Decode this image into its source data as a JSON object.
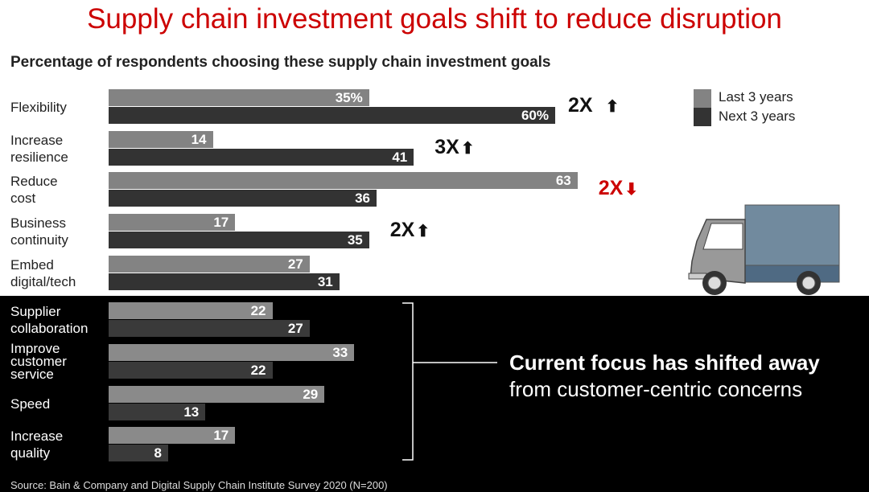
{
  "chart_data": {
    "type": "bar",
    "orientation": "horizontal",
    "title": "Supply chain investment goals shift to reduce disruption",
    "subtitle": "Percentage of respondents choosing these supply chain investment goals",
    "categories": [
      "Flexibility",
      "Increase\nresilience",
      "Reduce\ncost",
      "Business\ncontinuity",
      "Embed\ndigital/tech",
      "Supplier\ncollaboration",
      "Improve\ncustomer\nservice",
      "Speed",
      "Increase\nquality"
    ],
    "series": [
      {
        "name": "Last 3 years",
        "color": "#838383",
        "values": [
          35,
          14,
          63,
          17,
          27,
          22,
          33,
          29,
          17
        ]
      },
      {
        "name": "Next 3 years",
        "color": "#333333",
        "values": [
          60,
          41,
          36,
          35,
          31,
          27,
          22,
          13,
          8
        ]
      }
    ],
    "value_labels_first_row": [
      "35%",
      "60%"
    ],
    "xlim": [
      0,
      65
    ],
    "grid": false,
    "legend_placement": "top-right",
    "annotations": [
      {
        "category_index": 0,
        "text": "2X",
        "arrow": "up",
        "color": "#111111"
      },
      {
        "category_index": 1,
        "text": "3X",
        "arrow": "up",
        "color": "#111111"
      },
      {
        "category_index": 2,
        "text": "2X",
        "arrow": "down",
        "color": "#cc0000"
      },
      {
        "category_index": 3,
        "text": "2X",
        "arrow": "up",
        "color": "#111111"
      }
    ],
    "callout": {
      "bold": "Current focus has shifted away",
      "regular": "from customer-centric concerns"
    },
    "source": "Source: Bain & Company and Digital Supply Chain Institute Survey 2020 (N=200)"
  },
  "colors": {
    "title": "#cc0000",
    "truck_box": "#718a9e",
    "truck_box_bottom": "#4f6a83"
  },
  "icons": [
    "truck-illustration",
    "arrow-up-icon",
    "arrow-down-icon"
  ]
}
